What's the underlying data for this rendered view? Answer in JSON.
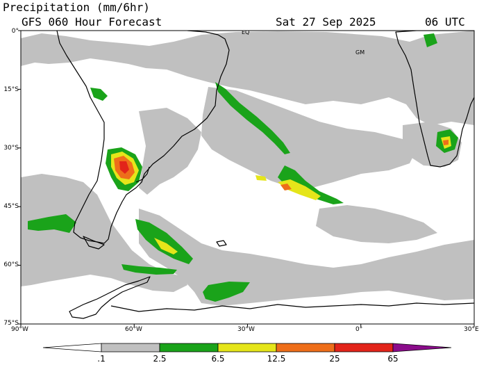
{
  "header": {
    "title": "Precipitation (mm/6hr)",
    "model": "GFS 060 Hour Forecast",
    "date": "Sat 27 Sep 2025",
    "cycle": "06 UTC"
  },
  "map": {
    "lon_range": [
      -90,
      30
    ],
    "lat_range": [
      -75,
      0
    ],
    "lat_labels": [
      "0°",
      "15°S",
      "30°S",
      "45°S",
      "60°S",
      "75°S"
    ],
    "lon_labels": [
      "90°W",
      "60°W",
      "30°W",
      "0°",
      "30°E"
    ],
    "place_labels": [
      "EQ",
      "GM"
    ]
  },
  "colorbar": {
    "labels": [
      ".1",
      "2.5",
      "6.5",
      "12.5",
      "25",
      "65"
    ],
    "colors": [
      "#ffffff",
      "#c0c0c0",
      "#1aa31a",
      "#e5e51a",
      "#ee6e1a",
      "#e2241a",
      "#8b0c8b"
    ]
  },
  "colors": {
    "light_precip": "#c0c0c0",
    "moderate": "#1aa31a",
    "heavy": "#e5e51a",
    "very_heavy": "#ee6e1a",
    "extreme": "#e2241a",
    "coast": "#000000"
  }
}
